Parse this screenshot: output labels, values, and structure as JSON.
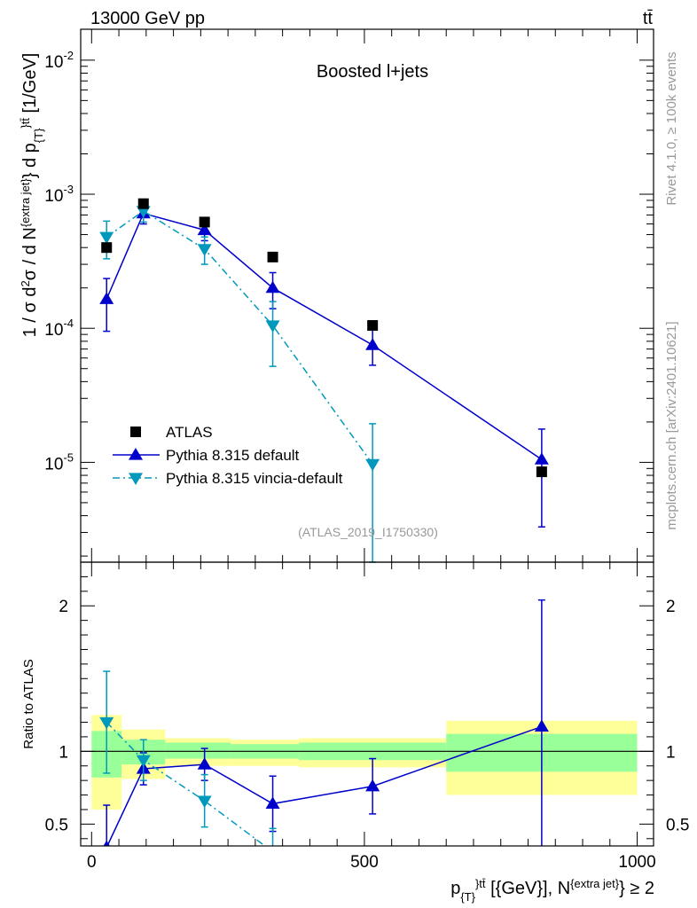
{
  "header": {
    "energy_label": "13000 GeV pp",
    "process_label": "tt̄"
  },
  "side_labels": {
    "rivet": "Rivet 4.1.0, ≥ 100k events",
    "mcplots": "mcplots.cern.ch [arXiv:2401.10621]"
  },
  "colors": {
    "data": "#000000",
    "default": "#0000cc",
    "vincia": "#0099bb",
    "band_green": "#99ff99",
    "band_yellow": "#ffff99"
  },
  "chart_data": {
    "type": "line",
    "title": "Boosted l+jets",
    "analysis_id": "(ATLAS_2019_I1750330)",
    "xlabel": "p_{T}^{tt̄} [{GeV}], N^{extra jet} ≥ 2",
    "ylabel": "1 / σ d²σ / d N^{extra jet} d p_{T}^{tt̄} [1/GeV]",
    "ratio_ylabel": "Ratio to ATLAS",
    "xlim": [
      -20,
      1030
    ],
    "ylim": [
      1.8e-06,
      0.017
    ],
    "ratio_ylim": [
      0.35,
      2.3
    ],
    "x_ticks": [
      0,
      500,
      1000
    ],
    "y_ticks": [
      1e-05,
      0.0001,
      0.001,
      0.01
    ],
    "y_tick_labels": [
      "10^-5",
      "10^-4",
      "10^-3",
      "10^-2"
    ],
    "ratio_ticks": [
      0.5,
      1,
      2
    ],
    "bins": [
      [
        0,
        55
      ],
      [
        55,
        135
      ],
      [
        135,
        255
      ],
      [
        255,
        380
      ],
      [
        380,
        650
      ],
      [
        650,
        1000
      ]
    ],
    "data": {
      "name": "ATLAS",
      "x": [
        27.5,
        95,
        207,
        332,
        515,
        825
      ],
      "y": [
        0.0004,
        0.00085,
        0.00062,
        0.00034,
        0.000105,
        8.5e-06
      ],
      "band_inner": [
        [
          0.82,
          1.14
        ],
        [
          0.91,
          1.08
        ],
        [
          0.95,
          1.06
        ],
        [
          0.95,
          1.05
        ],
        [
          0.94,
          1.06
        ],
        [
          0.86,
          1.12
        ]
      ],
      "band_outer": [
        [
          0.6,
          1.25
        ],
        [
          0.81,
          1.15
        ],
        [
          0.9,
          1.09
        ],
        [
          0.9,
          1.08
        ],
        [
          0.89,
          1.09
        ],
        [
          0.7,
          1.21
        ]
      ]
    },
    "series": [
      {
        "name": "Pythia 8.315 default",
        "style": "solid",
        "marker": "up",
        "x": [
          27.5,
          95,
          207,
          332,
          515,
          825
        ],
        "y": [
          0.000165,
          0.00072,
          0.00054,
          0.0002,
          7.5e-05,
          1.05e-05
        ],
        "y_err": [
          7e-05,
          0.00012,
          9e-05,
          6e-05,
          2.2e-05,
          7.2e-06
        ],
        "ratio": [
          0.34,
          0.88,
          0.91,
          0.64,
          0.76,
          1.17
        ],
        "ratio_err": [
          0.29,
          0.11,
          0.11,
          0.19,
          0.19,
          0.87
        ]
      },
      {
        "name": "Pythia 8.315 vincia-default",
        "style": "dashdot",
        "marker": "down",
        "x": [
          27.5,
          95,
          207,
          332,
          515
        ],
        "y": [
          0.00048,
          0.00075,
          0.00039,
          0.000105,
          9.7e-06
        ],
        "y_err": [
          0.00015,
          0.00013,
          9e-05,
          5.3e-05,
          9.7e-06
        ],
        "ratio": [
          1.2,
          0.94,
          0.66,
          0.31,
          0.09
        ],
        "ratio_err": [
          0.35,
          0.14,
          0.18,
          0.16,
          0.09
        ]
      }
    ]
  }
}
